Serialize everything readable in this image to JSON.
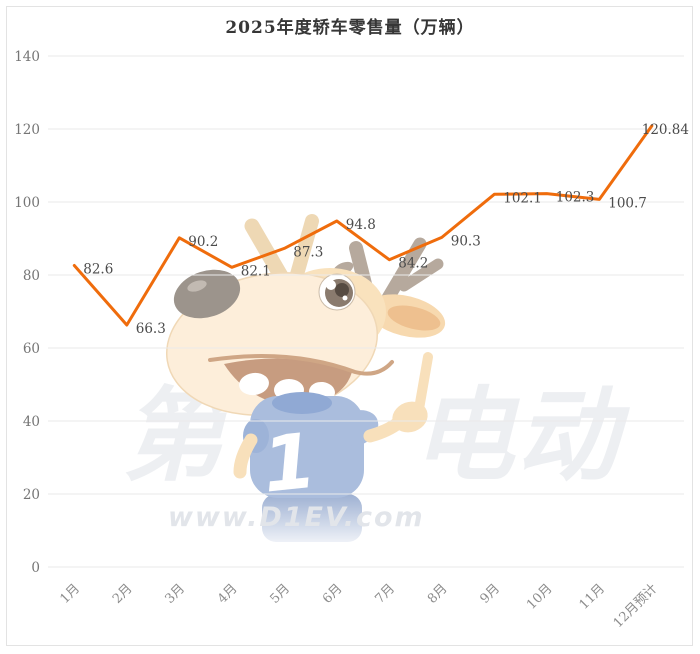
{
  "title": "2025年度轿车零售量（万辆）",
  "watermark": {
    "brand": "第1电动",
    "site": "www.D1EV.com"
  },
  "mascot": {
    "shirt_number": "1"
  },
  "colors": {
    "line": "#ef6c0c",
    "grid": "#eaeaea",
    "y_label": "#757575",
    "x_label": "#8c8c8c",
    "data_label": "#4b4b4b",
    "title": "#363636",
    "watermark_brand": "#edeff2",
    "watermark_site": "#e2e5ea"
  },
  "chart_data": {
    "type": "line",
    "title": "2025年度轿车零售量（万辆）",
    "categories": [
      "1月",
      "2月",
      "3月",
      "4月",
      "5月",
      "6月",
      "7月",
      "8月",
      "9月",
      "10月",
      "11月",
      "12月预计"
    ],
    "values": [
      82.6,
      66.3,
      90.2,
      82.1,
      87.3,
      94.8,
      84.2,
      90.3,
      102.1,
      102.3,
      100.7,
      120.84
    ],
    "xlabel": "",
    "ylabel": "",
    "ylim": [
      0,
      140
    ],
    "y_ticks": [
      0,
      20,
      40,
      60,
      80,
      100,
      120,
      140
    ],
    "grid": true,
    "legend": "none",
    "x_label_rotate": 45,
    "point_labels": true
  }
}
